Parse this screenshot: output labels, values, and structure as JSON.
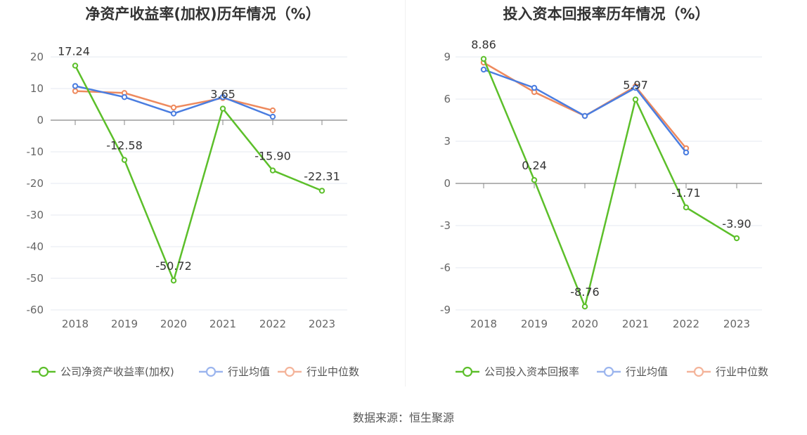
{
  "source": "数据来源：恒生聚源",
  "chart_data": [
    {
      "type": "line",
      "title": "净资产收益率(加权)历年情况（%）",
      "categories": [
        "2018",
        "2019",
        "2020",
        "2021",
        "2022",
        "2023"
      ],
      "yticks": [
        20,
        10,
        0,
        -10,
        -20,
        -30,
        -40,
        -50,
        -60
      ],
      "ylim": [
        -60,
        20
      ],
      "grid": true,
      "legend_position": "bottom",
      "series": [
        {
          "name": "公司净资产收益率(加权)",
          "color": "#5cbf2a",
          "values": [
            17.24,
            -12.58,
            -50.72,
            3.65,
            -15.9,
            -22.31
          ],
          "labels": [
            "17.24",
            "-12.58",
            "-50.72",
            "3.65",
            "-15.90",
            "-22.31"
          ]
        },
        {
          "name": "行业均值",
          "color": "#4a7de0",
          "values": [
            10.8,
            7.3,
            2.1,
            7.3,
            1.1,
            null
          ]
        },
        {
          "name": "行业中位数",
          "color": "#ee8a5e",
          "values": [
            9.2,
            8.6,
            4.0,
            7.0,
            3.1,
            null
          ]
        }
      ]
    },
    {
      "type": "line",
      "title": "投入资本回报率历年情况（%）",
      "categories": [
        "2018",
        "2019",
        "2020",
        "2021",
        "2022",
        "2023"
      ],
      "yticks": [
        9,
        6,
        3,
        0,
        -3,
        -6,
        -9
      ],
      "ylim": [
        -9,
        9
      ],
      "grid": true,
      "legend_position": "bottom",
      "series": [
        {
          "name": "公司投入资本回报率",
          "color": "#5cbf2a",
          "values": [
            8.86,
            0.24,
            -8.76,
            5.97,
            -1.71,
            -3.9
          ],
          "labels": [
            "8.86",
            "0.24",
            "-8.76",
            "5.97",
            "-1.71",
            "-3.90"
          ]
        },
        {
          "name": "行业均值",
          "color": "#4a7de0",
          "values": [
            8.1,
            6.8,
            4.8,
            6.8,
            2.2,
            null
          ]
        },
        {
          "name": "行业中位数",
          "color": "#ee8a5e",
          "values": [
            8.6,
            6.5,
            4.8,
            6.9,
            2.5,
            null
          ]
        }
      ]
    }
  ]
}
